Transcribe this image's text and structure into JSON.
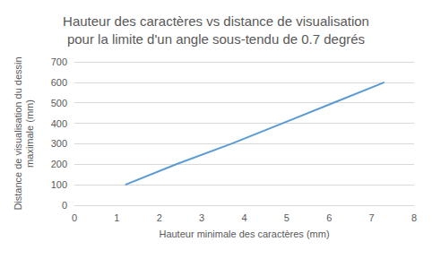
{
  "chart_data": {
    "type": "line",
    "title": "Hauteur des caractères vs distance de visualisation\npour la limite d'un angle sous-tendu de 0.7 degrés",
    "x_label": "Hauteur minimale des caractères (mm)",
    "y_label": "Distance de visualisation du dessin\nmaximale (mm)",
    "x": [
      1.2,
      2.4,
      3.7,
      4.9,
      6.1,
      7.3
    ],
    "values": [
      100,
      200,
      300,
      400,
      500,
      600
    ],
    "color": "#5b9bd5",
    "marker": "none",
    "xlim": [
      0,
      8
    ],
    "xticks": [
      0,
      1,
      2,
      3,
      4,
      5,
      6,
      7,
      8
    ],
    "ylim": [
      0,
      700
    ],
    "yticks": [
      0,
      100,
      200,
      300,
      400,
      500,
      600,
      700
    ],
    "grid": true
  }
}
